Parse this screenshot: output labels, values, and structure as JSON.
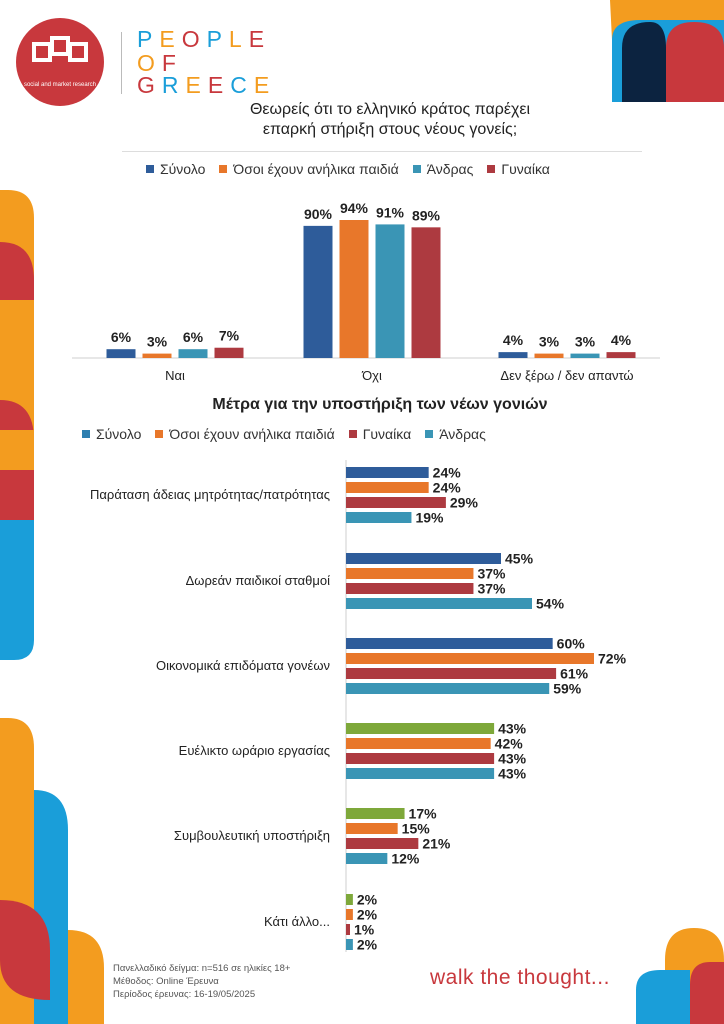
{
  "brand": {
    "logo_tagline": "social and market research",
    "wordmark_lines": [
      "PEOPLE",
      "OF",
      "GREECE"
    ],
    "tagline": "walk the thought...",
    "colors": {
      "red": "#c8383d",
      "orange": "#f39c1f",
      "blue": "#1a9ed9",
      "navy": "#0c2340"
    }
  },
  "footer": {
    "sample": "Πανελλαδικό δείγμα: n=516 σε ηλικίες 18+",
    "method": "Μέθοδος: Online Έρευνα",
    "period": "Περίοδος έρευνας: 16-19/05/2025"
  },
  "chart_data": [
    {
      "type": "bar",
      "title": "Θεωρείς ότι το ελληνικό κράτος παρέχει επαρκή στήριξη στους νέους γονείς;",
      "title_lines": [
        "Θεωρείς ότι το ελληνικό κράτος παρέχει",
        "επαρκή στήριξη στους νέους γονείς;"
      ],
      "categories": [
        "Ναι",
        "Όχι",
        "Δεν ξέρω / δεν απαντώ"
      ],
      "series": [
        {
          "name": "Σύνολο",
          "values": [
            6,
            90,
            4
          ],
          "labels": [
            "6%",
            "90%",
            "4%"
          ],
          "color": "#2e5c9a"
        },
        {
          "name": "Όσοι έχουν ανήλικα παιδιά",
          "values": [
            3,
            94,
            3
          ],
          "labels": [
            "3%",
            "94%",
            "3%"
          ],
          "color": "#e8772a"
        },
        {
          "name": "Άνδρας",
          "values": [
            6,
            91,
            3
          ],
          "labels": [
            "6%",
            "91%",
            "3%"
          ],
          "color": "#3a95b5"
        },
        {
          "name": "Γυναίκα",
          "values": [
            7,
            89,
            4
          ],
          "labels": [
            "7%",
            "89%",
            "4%"
          ],
          "color": "#ad3a40"
        }
      ],
      "legend_position": "top",
      "ylim": [
        0,
        100
      ],
      "grid": false
    },
    {
      "type": "bar",
      "orientation": "horizontal",
      "title": "Μέτρα για την υποστήριξη των νέων γονιών",
      "legend": [
        {
          "name": "Σύνολο",
          "color": "#2e7fb0"
        },
        {
          "name": "Όσοι έχουν ανήλικα παιδιά",
          "color": "#e8772a"
        },
        {
          "name": "Γυναίκα",
          "color": "#ad3a40"
        },
        {
          "name": "Άνδρας",
          "color": "#3a95b5"
        }
      ],
      "categories": [
        "Παράταση άδειας μητρότητας/πατρότητας",
        "Δωρεάν παιδικοί σταθμοί",
        "Οικονομικά επιδόματα γονέων",
        "Ευέλικτο ωράριο εργασίας",
        "Συμβουλευτική υποστήριξη",
        "Κάτι άλλο..."
      ],
      "first_bar_colors": [
        "#2e5c9a",
        "#2e5c9a",
        "#2e5c9a",
        "#7ea83a",
        "#7ea83a",
        "#7ea83a"
      ],
      "series": [
        {
          "name": "Σύνολο",
          "values": [
            24,
            45,
            60,
            43,
            17,
            2
          ],
          "labels": [
            "24%",
            "45%",
            "60%",
            "43%",
            "17%",
            "2%"
          ]
        },
        {
          "name": "Όσοι έχουν ανήλικα παιδιά",
          "values": [
            24,
            37,
            72,
            42,
            15,
            2
          ],
          "labels": [
            "24%",
            "37%",
            "72%",
            "42%",
            "15%",
            "2%"
          ],
          "color": "#e8772a"
        },
        {
          "name": "Γυναίκα",
          "values": [
            29,
            37,
            61,
            43,
            21,
            1
          ],
          "labels": [
            "29%",
            "37%",
            "61%",
            "43%",
            "21%",
            "1%"
          ],
          "color": "#ad3a40"
        },
        {
          "name": "Άνδρας",
          "values": [
            19,
            54,
            59,
            43,
            12,
            2
          ],
          "labels": [
            "19%",
            "54%",
            "59%",
            "43%",
            "12%",
            "2%"
          ],
          "color": "#3a95b5"
        }
      ],
      "xlim": [
        0,
        100
      ],
      "legend_position": "top",
      "grid": false
    }
  ]
}
